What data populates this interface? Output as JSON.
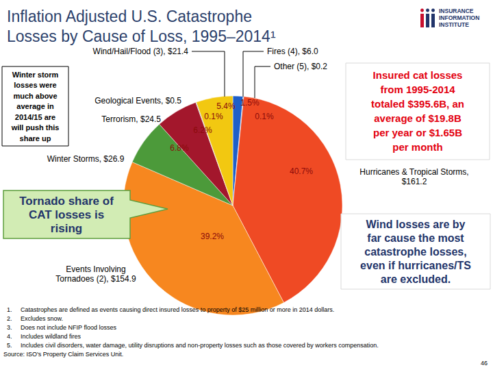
{
  "chart_data": {
    "type": "pie",
    "title": "Inflation Adjusted U.S. Catastrophe\nLosses by Cause of Loss, 1995–2014¹",
    "categories": [
      "Fires (4), $6.0",
      "Other (5), $0.2",
      "Hurricanes & Tropical Storms,\n$161.2",
      "Events Involving\nTornadoes (2), $154.9",
      "Winter Storms, $26.9",
      "Terrorism, $24.5",
      "Geological Events, $0.5",
      "Wind/Hail/Flood (3), $21.4"
    ],
    "values": [
      1.5,
      0.1,
      40.7,
      39.2,
      6.8,
      6.2,
      0.1,
      5.4
    ],
    "value_labels": [
      "1.5%",
      "0.1%",
      "40.7%",
      "39.2%",
      "6.8%",
      "6.2%",
      "0.1%",
      "5.4%"
    ],
    "colors": [
      "#1f5fc8",
      "#6f9be0",
      "#ef4a24",
      "#f7871f",
      "#4c9a3a",
      "#a3172c",
      "#8c8c8c",
      "#f2c811"
    ],
    "data_labels": true,
    "annotations": [
      {
        "text": "Winter storm\nlosses were\nmuch above\naverage in\n2014/15 are\nwill push this\nshare up"
      },
      {
        "text": "Tornado share of\nCAT losses is\nrising"
      },
      {
        "text": "Insured cat losses\nfrom 1995-2014\ntotaled $395.6B, an\naverage of $19.8B\nper year or $1.65B\nper month"
      },
      {
        "text": "Wind losses are by\nfar cause the most\ncatastrophe losses,\neven if hurricanes/TS\nare excluded."
      }
    ],
    "footnotes": [
      {
        "label": "1.",
        "text": "Catastrophes are defined as events causing direct insured losses to property of $25 million or more in 2014 dollars."
      },
      {
        "label": "2.",
        "text": "Excludes snow."
      },
      {
        "label": "3.",
        "text": "Does not include NFIP flood losses"
      },
      {
        "label": "4.",
        "text": "Includes wildland fires"
      },
      {
        "label": "5.",
        "text": "Includes civil disorders, water damage, utility disruptions and non-property losses such as those covered by workers compensation."
      }
    ],
    "source": "Source: ISO's Property Claim Services Unit.",
    "logo": [
      "INSURANCE",
      "INFORMATION",
      "INSTITUTE"
    ],
    "page_number": 46
  }
}
